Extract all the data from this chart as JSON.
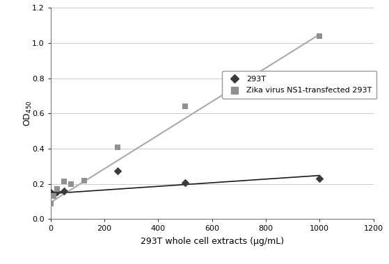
{
  "293T_x": [
    0,
    10,
    25,
    50,
    250,
    500,
    1000
  ],
  "293T_y": [
    0.15,
    0.14,
    0.155,
    0.16,
    0.275,
    0.205,
    0.23
  ],
  "zika_x": [
    0,
    10,
    25,
    50,
    75,
    125,
    250,
    500,
    1000
  ],
  "zika_y": [
    0.09,
    0.13,
    0.17,
    0.215,
    0.2,
    0.22,
    0.41,
    0.64,
    1.04
  ],
  "293T_line_x": [
    0,
    1000
  ],
  "293T_line_y": [
    0.145,
    0.248
  ],
  "zika_line_x": [
    0,
    1000
  ],
  "zika_line_y": [
    0.095,
    1.05
  ],
  "xlabel": "293T whole cell extracts (μg/mL)",
  "ylabel_main": "OD",
  "ylabel_sub": "450",
  "xlim": [
    0,
    1200
  ],
  "ylim": [
    0,
    1.2
  ],
  "xticks": [
    0,
    200,
    400,
    600,
    800,
    1000,
    1200
  ],
  "yticks": [
    0,
    0.2,
    0.4,
    0.6,
    0.8,
    1.0,
    1.2
  ],
  "legend_labels": [
    "293T",
    "Zika virus NS1-transfected 293T"
  ],
  "marker_color_293T": "#3a3a3a",
  "marker_color_zika": "#909090",
  "line_color_293T": "#1a1a1a",
  "line_color_zika": "#aaaaaa",
  "bg_color": "#ffffff",
  "grid_color": "#cccccc"
}
